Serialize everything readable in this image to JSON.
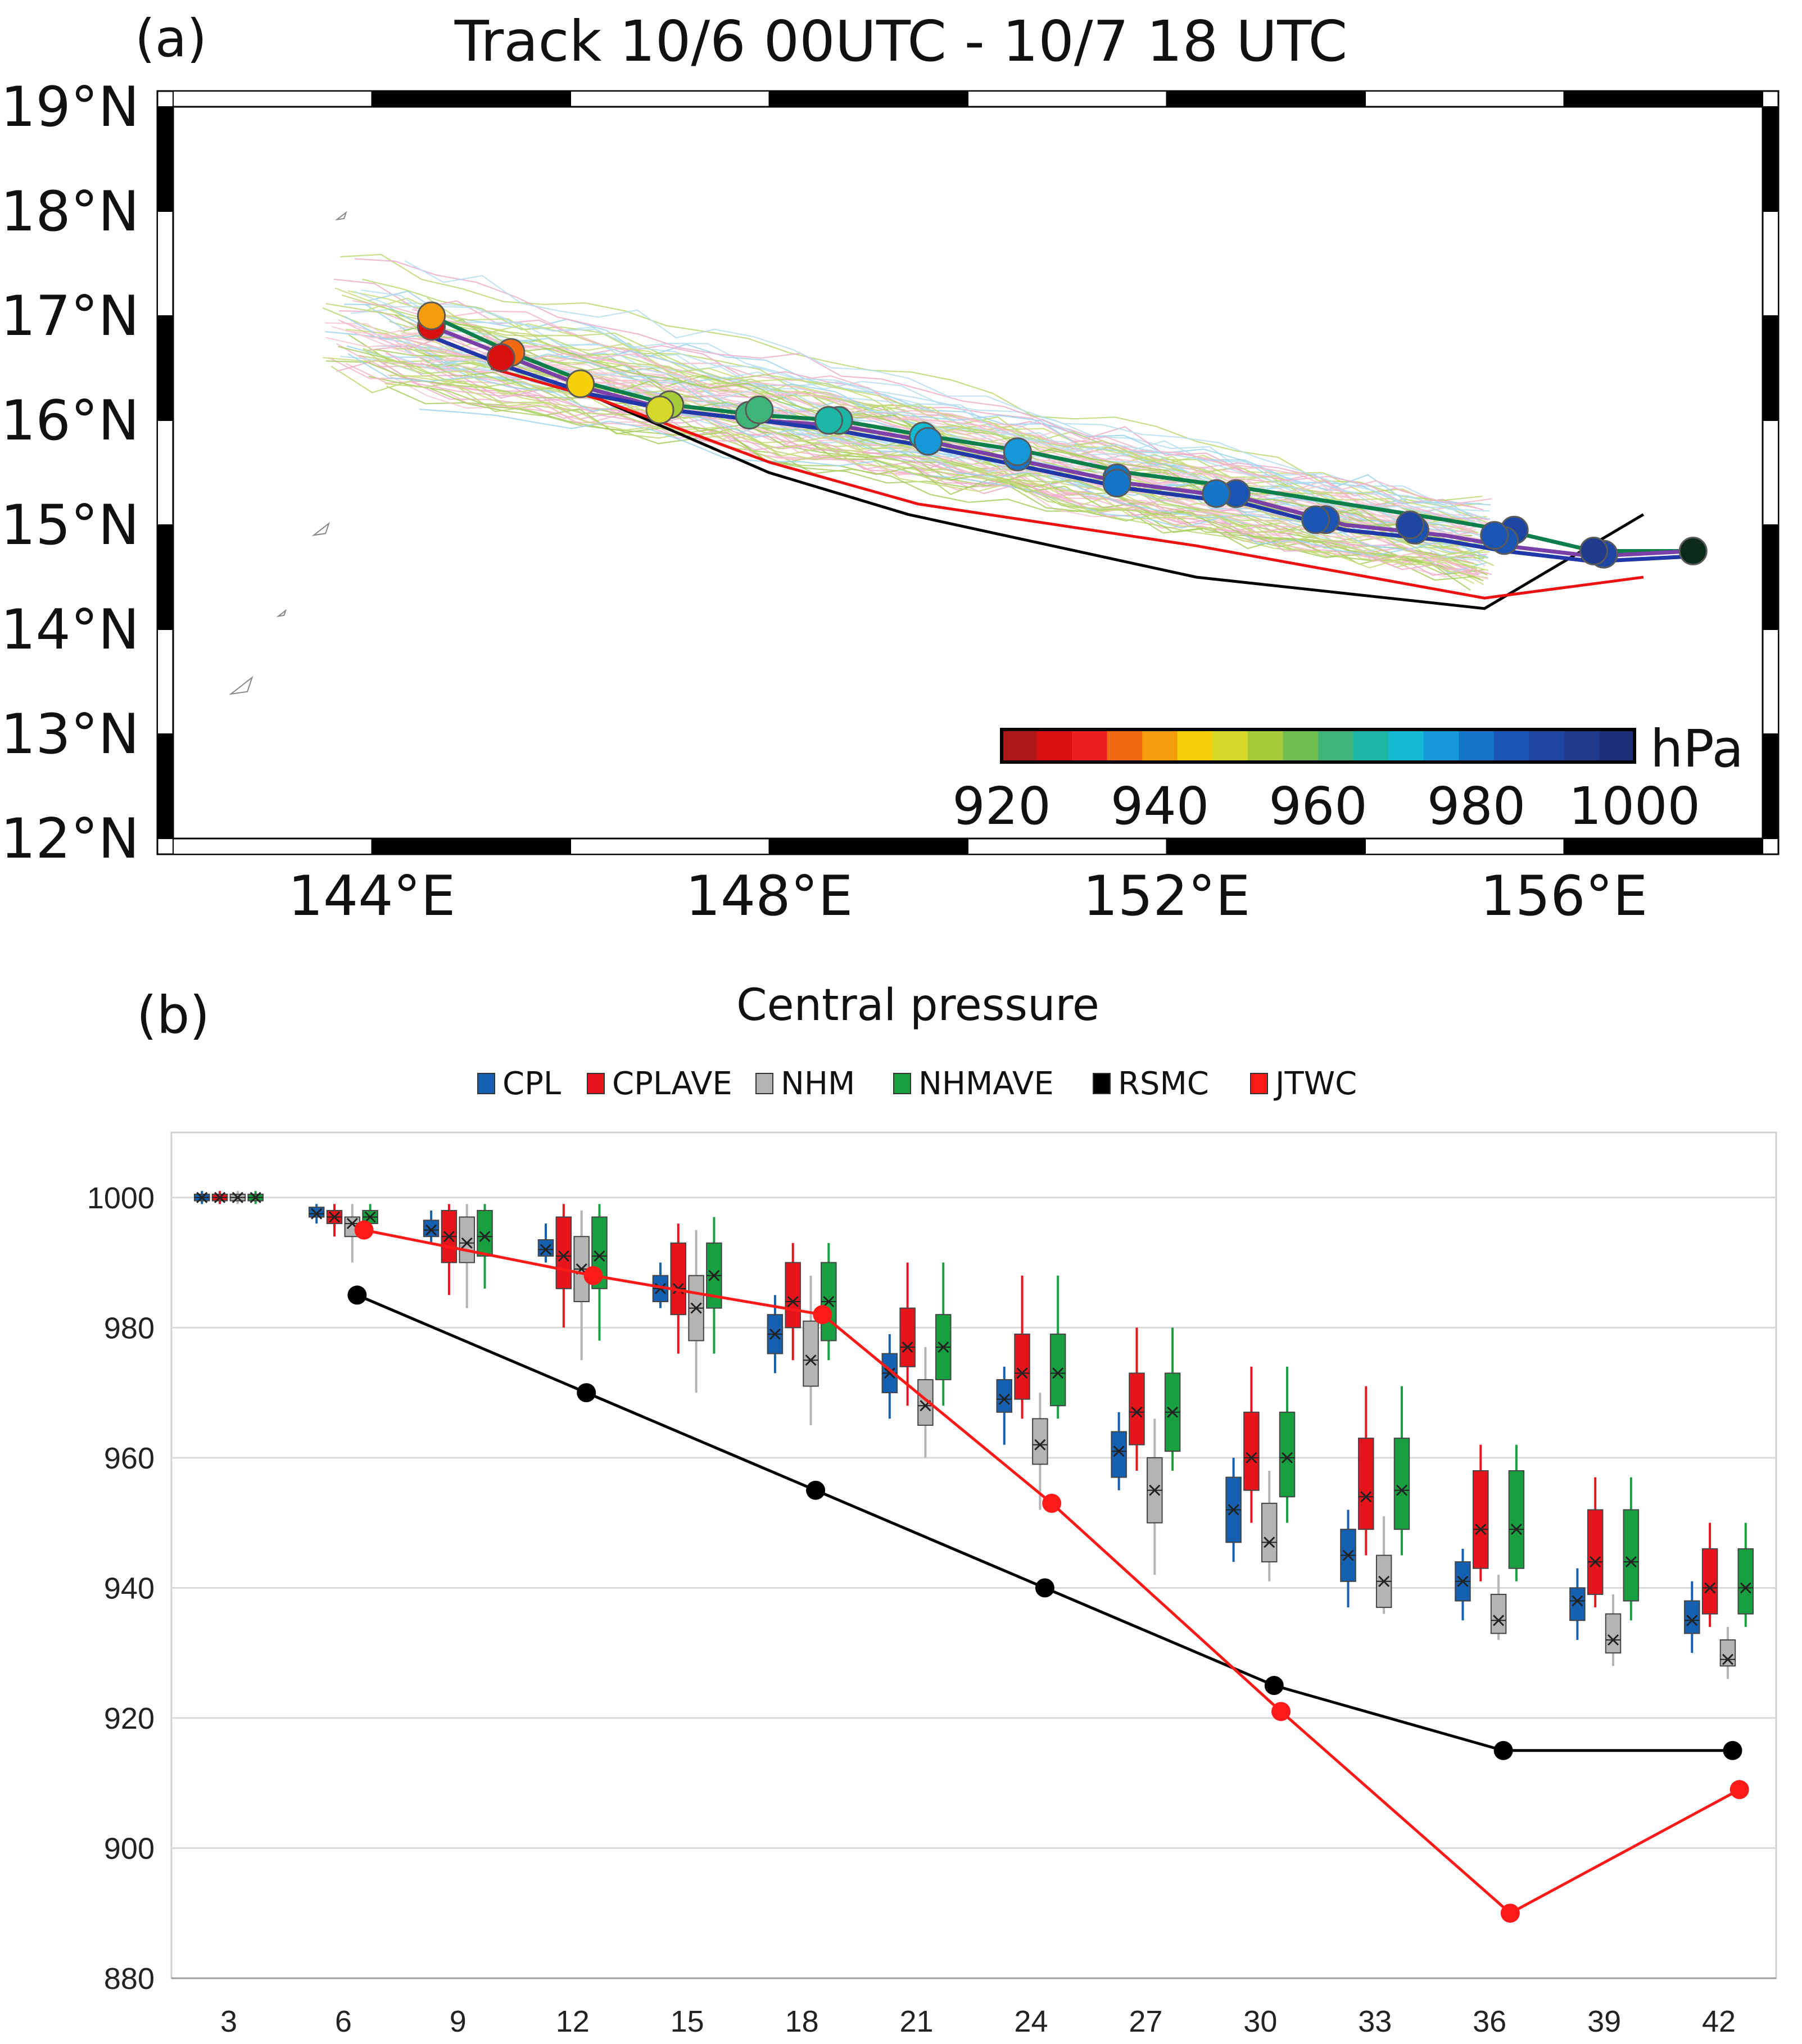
{
  "chart_data": [
    {
      "type": "map",
      "panel_label": "(a)",
      "title": "Track  10/6 00UTC - 10/7 18 UTC",
      "lat_range": [
        12,
        19
      ],
      "lon_range": [
        142,
        158
      ],
      "lat_ticks": [
        {
          "value": 19,
          "label": "19°N"
        },
        {
          "value": 18,
          "label": "18°N"
        },
        {
          "value": 17,
          "label": "17°N"
        },
        {
          "value": 16,
          "label": "16°N"
        },
        {
          "value": 15,
          "label": "15°N"
        },
        {
          "value": 14,
          "label": "14°N"
        },
        {
          "value": 13,
          "label": "13°N"
        },
        {
          "value": 12,
          "label": "12°N"
        }
      ],
      "lon_ticks": [
        {
          "value": 144,
          "label": "144°E"
        },
        {
          "value": 148,
          "label": "148°E"
        },
        {
          "value": 152,
          "label": "152°E"
        },
        {
          "value": 156,
          "label": "156°E"
        }
      ],
      "colorbar": {
        "unit": "hPa",
        "ticks": [
          920,
          940,
          960,
          980,
          1000
        ],
        "range": [
          920,
          1000
        ],
        "colors": [
          "#b01818",
          "#d81010",
          "#ee1f1f",
          "#f26a0f",
          "#f59c0c",
          "#f7cf0d",
          "#d5da2a",
          "#a6cc3a",
          "#6fbd4c",
          "#3fb57a",
          "#1bb6a6",
          "#12b9d3",
          "#1598d8",
          "#1576c8",
          "#1a55b4",
          "#1d46a3",
          "#1f3b8e",
          "#1e2f78"
        ]
      },
      "tracks": [
        {
          "name": "RSMC",
          "color": "#000000",
          "points": [
            [
              156.8,
              15.1
            ],
            [
              155.2,
              14.2
            ],
            [
              152.3,
              14.5
            ],
            [
              149.4,
              15.1
            ],
            [
              148.0,
              15.5
            ],
            [
              146.3,
              16.2
            ],
            [
              145.2,
              16.5
            ]
          ]
        },
        {
          "name": "JTWC",
          "color": "#ee1111",
          "points": [
            [
              156.8,
              14.5
            ],
            [
              155.2,
              14.3
            ],
            [
              152.3,
              14.8
            ],
            [
              149.5,
              15.2
            ],
            [
              148.0,
              15.6
            ],
            [
              146.3,
              16.2
            ],
            [
              145.2,
              16.5
            ]
          ]
        },
        {
          "name": "NHMAVE",
          "color": "#0d7f4a",
          "points": [
            [
              157.3,
              14.75
            ],
            [
              156.3,
              14.75
            ],
            [
              155.4,
              14.95
            ],
            [
              154.8,
              15.05
            ],
            [
              153.8,
              15.2
            ],
            [
              152.8,
              15.35
            ],
            [
              151.6,
              15.5
            ],
            [
              150.6,
              15.7
            ],
            [
              149.6,
              15.85
            ],
            [
              148.7,
              16.0
            ],
            [
              147.9,
              16.05
            ],
            [
              147.0,
              16.15
            ],
            [
              146.2,
              16.35
            ],
            [
              145.4,
              16.65
            ],
            [
              144.6,
              17.0
            ]
          ]
        },
        {
          "name": "CPLAVE",
          "color": "#7b3fa8",
          "points": [
            [
              157.3,
              14.75
            ],
            [
              156.3,
              14.7
            ],
            [
              155.4,
              14.8
            ],
            [
              154.8,
              14.9
            ],
            [
              153.8,
              15.0
            ],
            [
              152.8,
              15.25
            ],
            [
              151.6,
              15.4
            ],
            [
              150.6,
              15.6
            ],
            [
              149.6,
              15.8
            ],
            [
              148.7,
              15.95
            ],
            [
              147.9,
              16.0
            ],
            [
              147.0,
              16.1
            ],
            [
              146.2,
              16.3
            ],
            [
              145.4,
              16.6
            ],
            [
              144.6,
              16.9
            ]
          ]
        },
        {
          "name": "CPL",
          "color": "#2038a8",
          "points": [
            [
              157.3,
              14.7
            ],
            [
              156.3,
              14.65
            ],
            [
              155.4,
              14.75
            ],
            [
              154.8,
              14.85
            ],
            [
              153.8,
              14.95
            ],
            [
              152.8,
              15.2
            ],
            [
              151.6,
              15.35
            ],
            [
              150.6,
              15.55
            ],
            [
              149.6,
              15.75
            ],
            [
              148.7,
              15.9
            ],
            [
              147.9,
              16.0
            ],
            [
              147.0,
              16.1
            ],
            [
              146.2,
              16.25
            ],
            [
              145.4,
              16.5
            ],
            [
              144.6,
              16.8
            ]
          ]
        }
      ],
      "track_markers": [
        {
          "lon": 157.3,
          "lat": 14.75,
          "p": 1002
        },
        {
          "lon": 156.4,
          "lat": 14.72,
          "p": 990
        },
        {
          "lon": 156.3,
          "lat": 14.75,
          "p": 992
        },
        {
          "lon": 155.5,
          "lat": 14.95,
          "p": 988
        },
        {
          "lon": 155.4,
          "lat": 14.85,
          "p": 986
        },
        {
          "lon": 155.3,
          "lat": 14.9,
          "p": 985
        },
        {
          "lon": 154.5,
          "lat": 14.95,
          "p": 986
        },
        {
          "lon": 154.45,
          "lat": 15.0,
          "p": 988
        },
        {
          "lon": 153.6,
          "lat": 15.05,
          "p": 984
        },
        {
          "lon": 153.5,
          "lat": 15.05,
          "p": 985
        },
        {
          "lon": 152.7,
          "lat": 15.3,
          "p": 983
        },
        {
          "lon": 152.5,
          "lat": 15.3,
          "p": 982
        },
        {
          "lon": 151.5,
          "lat": 15.45,
          "p": 980
        },
        {
          "lon": 151.5,
          "lat": 15.4,
          "p": 978
        },
        {
          "lon": 150.5,
          "lat": 15.65,
          "p": 978
        },
        {
          "lon": 150.5,
          "lat": 15.7,
          "p": 976
        },
        {
          "lon": 149.55,
          "lat": 15.85,
          "p": 972
        },
        {
          "lon": 149.6,
          "lat": 15.8,
          "p": 974
        },
        {
          "lon": 148.7,
          "lat": 16.0,
          "p": 968
        },
        {
          "lon": 148.6,
          "lat": 16.0,
          "p": 966
        },
        {
          "lon": 147.8,
          "lat": 16.05,
          "p": 962
        },
        {
          "lon": 147.9,
          "lat": 16.1,
          "p": 960
        },
        {
          "lon": 147.0,
          "lat": 16.15,
          "p": 952
        },
        {
          "lon": 146.9,
          "lat": 16.1,
          "p": 950
        },
        {
          "lon": 146.1,
          "lat": 16.35,
          "p": 945
        },
        {
          "lon": 145.4,
          "lat": 16.65,
          "p": 935
        },
        {
          "lon": 145.3,
          "lat": 16.6,
          "p": 928
        },
        {
          "lon": 144.6,
          "lat": 16.9,
          "p": 926
        },
        {
          "lon": 144.6,
          "lat": 17.0,
          "p": 938
        }
      ],
      "islands": [
        {
          "lon": 143.7,
          "lat": 17.95,
          "size": 0.15
        },
        {
          "lon": 143.5,
          "lat": 14.95,
          "size": 0.25
        },
        {
          "lon": 143.1,
          "lat": 14.15,
          "size": 0.12
        },
        {
          "lon": 142.7,
          "lat": 13.45,
          "size": 0.35
        }
      ]
    },
    {
      "type": "box_line",
      "panel_label": "(b)",
      "title": "Central pressure",
      "ylim": [
        880,
        1010
      ],
      "yticks": [
        880,
        900,
        920,
        940,
        960,
        980,
        1000
      ],
      "categories": [
        "3",
        "6",
        "9",
        "12",
        "15",
        "18",
        "21",
        "24",
        "27",
        "30",
        "33",
        "36",
        "39",
        "42"
      ],
      "legend": [
        {
          "name": "CPL",
          "color": "#1560b0"
        },
        {
          "name": "CPLAVE",
          "color": "#e8141c"
        },
        {
          "name": "NHM",
          "color": "#b4b4b4"
        },
        {
          "name": "NHMAVE",
          "color": "#18a040"
        },
        {
          "name": "RSMC",
          "color": "#000000"
        },
        {
          "name": "JTWC",
          "color": "#ff1a1a"
        }
      ],
      "box_series": [
        {
          "name": "CPL",
          "color": "#1560b0",
          "boxes": [
            [
              999,
              999.5,
              1000,
              1000.5,
              1001,
              1000
            ],
            [
              996,
              997,
              997.5,
              998.5,
              999,
              997.5
            ],
            [
              993,
              994,
              995,
              996.5,
              998,
              995
            ],
            [
              990,
              991,
              992,
              993.5,
              996,
              992
            ],
            [
              983,
              984,
              986,
              988,
              990,
              986
            ],
            [
              973,
              976,
              979,
              982,
              985,
              979
            ],
            [
              966,
              970,
              973,
              976,
              979,
              973
            ],
            [
              962,
              967,
              969,
              972,
              974,
              969
            ],
            [
              955,
              957,
              961,
              964,
              967,
              961
            ],
            [
              944,
              947,
              952,
              957,
              960,
              952
            ],
            [
              937,
              941,
              945,
              949,
              952,
              945
            ],
            [
              935,
              938,
              941,
              944,
              946,
              941
            ],
            [
              932,
              935,
              938,
              940,
              943,
              938
            ],
            [
              930,
              933,
              935,
              938,
              941,
              935
            ]
          ]
        },
        {
          "name": "CPLAVE",
          "color": "#e8141c",
          "boxes": [
            [
              999,
              999.5,
              1000,
              1000.5,
              1001,
              1000
            ],
            [
              994,
              996,
              997,
              998,
              999,
              997
            ],
            [
              985,
              990,
              994,
              998,
              999,
              994
            ],
            [
              980,
              986,
              991,
              997,
              999,
              991
            ],
            [
              976,
              982,
              986,
              993,
              996,
              986
            ],
            [
              975,
              980,
              984,
              990,
              993,
              984
            ],
            [
              968,
              974,
              977,
              983,
              990,
              977
            ],
            [
              966,
              969,
              973,
              979,
              988,
              973
            ],
            [
              958,
              962,
              967,
              973,
              980,
              967
            ],
            [
              950,
              955,
              960,
              967,
              974,
              960
            ],
            [
              945,
              949,
              954,
              963,
              971,
              954
            ],
            [
              941,
              943,
              949,
              958,
              962,
              949
            ],
            [
              937,
              939,
              944,
              952,
              957,
              944
            ],
            [
              934,
              936,
              940,
              946,
              950,
              940
            ]
          ]
        },
        {
          "name": "NHM",
          "color": "#b4b4b4",
          "boxes": [
            [
              999,
              999.5,
              1000,
              1000.5,
              1001,
              1000
            ],
            [
              990,
              994,
              996,
              997,
              999,
              996
            ],
            [
              983,
              990,
              993,
              997,
              999,
              993
            ],
            [
              975,
              984,
              989,
              994,
              998,
              989
            ],
            [
              970,
              978,
              983,
              988,
              995,
              983
            ],
            [
              965,
              971,
              975,
              981,
              988,
              975
            ],
            [
              960,
              965,
              968,
              972,
              977,
              968
            ],
            [
              952,
              959,
              962,
              966,
              970,
              962
            ],
            [
              942,
              950,
              955,
              960,
              966,
              955
            ],
            [
              941,
              944,
              947,
              953,
              958,
              947
            ],
            [
              936,
              937,
              941,
              945,
              951,
              941
            ],
            [
              932,
              933,
              935,
              939,
              942,
              935
            ],
            [
              928,
              930,
              932,
              936,
              939,
              932
            ],
            [
              926,
              928,
              929,
              932,
              934,
              929
            ]
          ]
        },
        {
          "name": "NHMAVE",
          "color": "#18a040",
          "boxes": [
            [
              999,
              999.5,
              1000,
              1000.5,
              1001,
              1000
            ],
            [
              994,
              996,
              997,
              998,
              999,
              997
            ],
            [
              986,
              991,
              994,
              998,
              999,
              994
            ],
            [
              978,
              986,
              991,
              997,
              999,
              991
            ],
            [
              976,
              983,
              988,
              993,
              997,
              988
            ],
            [
              975,
              978,
              984,
              990,
              993,
              984
            ],
            [
              968,
              972,
              977,
              982,
              990,
              977
            ],
            [
              966,
              968,
              973,
              979,
              988,
              973
            ],
            [
              958,
              961,
              967,
              973,
              980,
              967
            ],
            [
              950,
              954,
              960,
              967,
              974,
              960
            ],
            [
              945,
              949,
              955,
              963,
              971,
              955
            ],
            [
              941,
              943,
              949,
              958,
              962,
              949
            ],
            [
              935,
              938,
              944,
              952,
              957,
              944
            ],
            [
              934,
              936,
              940,
              946,
              950,
              940
            ]
          ]
        }
      ],
      "line_series": [
        {
          "name": "RSMC",
          "color": "#000000",
          "x": [
            6,
            12,
            18,
            24,
            30,
            36,
            42
          ],
          "values": [
            985,
            970,
            955,
            940,
            925,
            915,
            915
          ]
        },
        {
          "name": "JTWC",
          "color": "#ff1a1a",
          "x": [
            6,
            12,
            18,
            24,
            30,
            36,
            42
          ],
          "values": [
            995,
            988,
            982,
            953,
            921,
            890,
            909
          ]
        }
      ]
    }
  ]
}
